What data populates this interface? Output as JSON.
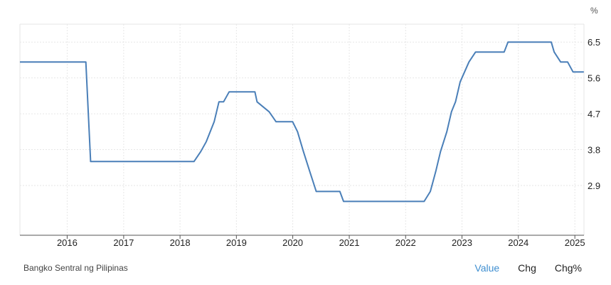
{
  "chart_data": {
    "type": "line",
    "unit": "%",
    "x_ticks": [
      "2016",
      "2017",
      "2018",
      "2019",
      "2020",
      "2021",
      "2022",
      "2023",
      "2024",
      "2025"
    ],
    "y_ticks": [
      "2.9",
      "3.8",
      "4.7",
      "5.6",
      "6.5"
    ],
    "ylim": [
      1.65,
      6.95
    ],
    "xlim": [
      "2015-03-01",
      "2025-03-01"
    ],
    "grid": true,
    "line_color": "#4a7fb8",
    "series": [
      {
        "points": [
          [
            "2015-03-01",
            6.0
          ],
          [
            "2016-05-01",
            6.0
          ],
          [
            "2016-06-01",
            3.5
          ],
          [
            "2018-04-01",
            3.5
          ],
          [
            "2018-05-15",
            3.75
          ],
          [
            "2018-06-20",
            4.0
          ],
          [
            "2018-08-10",
            4.5
          ],
          [
            "2018-09-10",
            5.0
          ],
          [
            "2018-10-10",
            5.0
          ],
          [
            "2018-11-15",
            5.25
          ],
          [
            "2019-05-01",
            5.25
          ],
          [
            "2019-05-15",
            5.0
          ],
          [
            "2019-08-01",
            4.75
          ],
          [
            "2019-09-15",
            4.5
          ],
          [
            "2019-12-31",
            4.5
          ],
          [
            "2020-02-01",
            4.25
          ],
          [
            "2020-03-10",
            3.75
          ],
          [
            "2020-04-20",
            3.25
          ],
          [
            "2020-06-01",
            2.75
          ],
          [
            "2020-11-01",
            2.75
          ],
          [
            "2020-11-25",
            2.5
          ],
          [
            "2022-05-01",
            2.5
          ],
          [
            "2022-06-10",
            2.75
          ],
          [
            "2022-07-15",
            3.25
          ],
          [
            "2022-08-15",
            3.75
          ],
          [
            "2022-09-25",
            4.25
          ],
          [
            "2022-10-25",
            4.75
          ],
          [
            "2022-11-20",
            5.0
          ],
          [
            "2022-12-20",
            5.5
          ],
          [
            "2023-02-15",
            6.0
          ],
          [
            "2023-03-30",
            6.25
          ],
          [
            "2023-05-01",
            6.25
          ],
          [
            "2023-10-01",
            6.25
          ],
          [
            "2023-10-26",
            6.5
          ],
          [
            "2024-08-01",
            6.5
          ],
          [
            "2024-08-20",
            6.25
          ],
          [
            "2024-10-01",
            6.0
          ],
          [
            "2024-11-15",
            6.0
          ],
          [
            "2024-12-20",
            5.75
          ],
          [
            "2025-02-28",
            5.75
          ]
        ]
      }
    ]
  },
  "footer": {
    "source": "Bangko Sentral ng Pilipinas",
    "tabs": [
      "Value",
      "Chg",
      "Chg%"
    ],
    "active_tab": "Value"
  }
}
